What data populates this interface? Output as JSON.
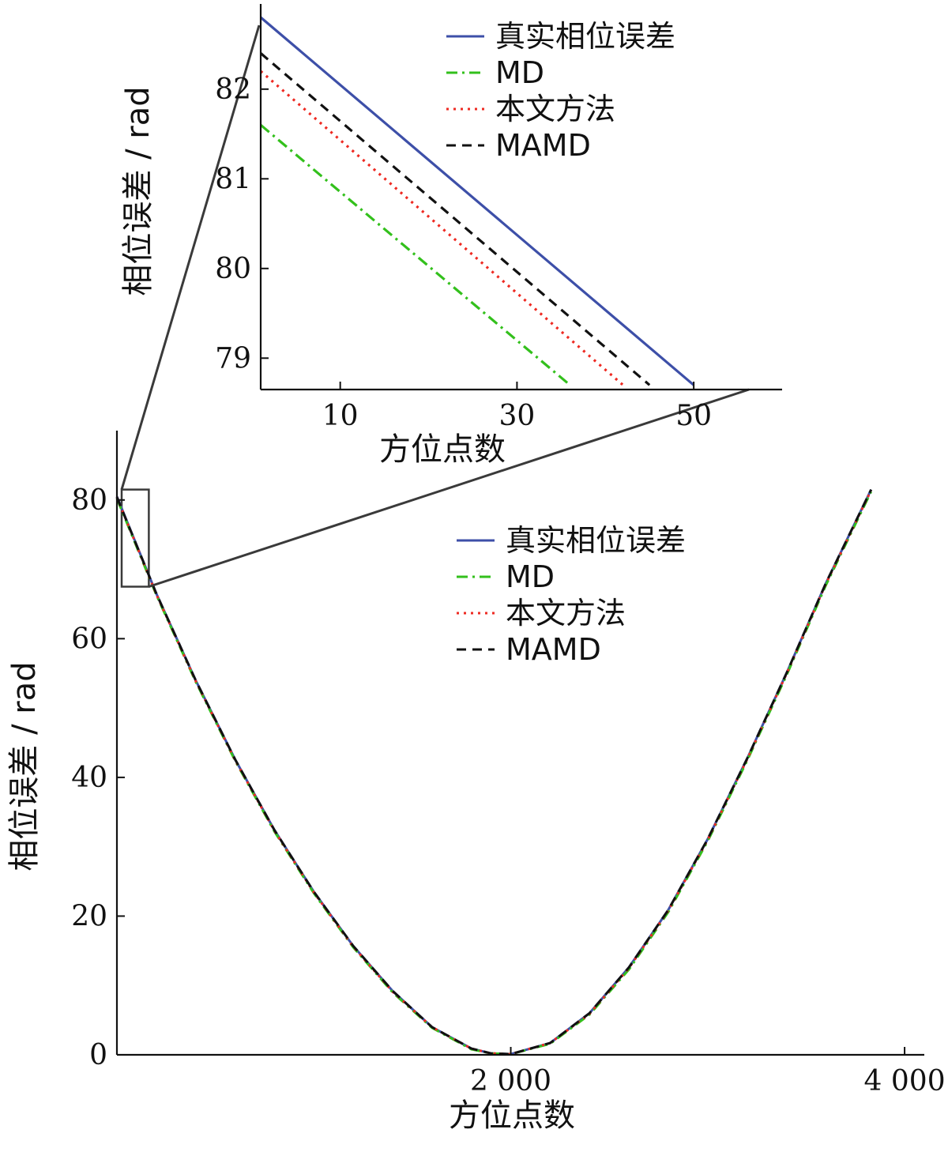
{
  "chart_data": [
    {
      "id": "main",
      "type": "line",
      "title": "",
      "xlabel": "方位点数",
      "ylabel": "相位误差 / rad",
      "xlim": [
        0,
        4100
      ],
      "ylim": [
        0,
        90
      ],
      "xticks": [
        2000,
        4000
      ],
      "xtick_labels": [
        "2 000",
        "4 000"
      ],
      "yticks": [
        0,
        20,
        40,
        60,
        80
      ],
      "ytick_labels": [
        "0",
        "20",
        "40",
        "60",
        "80"
      ],
      "grid": false,
      "legend_position": "upper-right",
      "series": [
        {
          "name": "真实相位误差",
          "color": "#3d4fa8",
          "dash": "solid",
          "x": [
            0,
            200,
            400,
            600,
            800,
            1000,
            1200,
            1400,
            1600,
            1800,
            1900,
            2000,
            2200,
            2400,
            2600,
            2800,
            3000,
            3200,
            3400,
            3600,
            3830
          ],
          "y": [
            80.5,
            66.5,
            54.0,
            42.6,
            32.4,
            23.5,
            15.7,
            9.2,
            4.0,
            0.9,
            0.2,
            0.1,
            1.7,
            6.0,
            12.6,
            20.9,
            31.1,
            42.7,
            55.0,
            68.0,
            81.5
          ]
        },
        {
          "name": "MD",
          "color": "#33c01c",
          "dash": "dashdot",
          "x": [
            0,
            200,
            400,
            600,
            800,
            1000,
            1200,
            1400,
            1600,
            1800,
            1900,
            2000,
            2200,
            2400,
            2600,
            2800,
            3000,
            3200,
            3400,
            3600,
            3830
          ],
          "y": [
            80.2,
            66.3,
            53.8,
            42.4,
            32.2,
            23.3,
            15.5,
            9.0,
            3.9,
            0.8,
            0.2,
            0.1,
            1.6,
            5.8,
            12.3,
            20.6,
            30.8,
            42.4,
            54.7,
            67.7,
            81.2
          ]
        },
        {
          "name": "本文方法",
          "color": "#ee2a22",
          "dash": "dotted",
          "x": [
            0,
            200,
            400,
            600,
            800,
            1000,
            1200,
            1400,
            1600,
            1800,
            1900,
            2000,
            2200,
            2400,
            2600,
            2800,
            3000,
            3200,
            3400,
            3600,
            3830
          ],
          "y": [
            80.4,
            66.4,
            53.9,
            42.5,
            32.3,
            23.4,
            15.6,
            9.1,
            4.0,
            0.9,
            0.2,
            0.1,
            1.7,
            5.9,
            12.5,
            20.8,
            31.0,
            42.6,
            54.9,
            67.9,
            81.4
          ]
        },
        {
          "name": "MAMD",
          "color": "#111111",
          "dash": "dashed",
          "x": [
            0,
            200,
            400,
            600,
            800,
            1000,
            1200,
            1400,
            1600,
            1800,
            1900,
            2000,
            2200,
            2400,
            2600,
            2800,
            3000,
            3200,
            3400,
            3600,
            3830
          ],
          "y": [
            80.4,
            66.5,
            54.0,
            42.6,
            32.4,
            23.5,
            15.7,
            9.2,
            4.0,
            0.9,
            0.2,
            0.1,
            1.7,
            6.0,
            12.6,
            20.9,
            31.1,
            42.7,
            55.0,
            68.0,
            81.5
          ]
        }
      ]
    },
    {
      "id": "inset",
      "type": "line",
      "title": "",
      "xlabel": "方位点数",
      "ylabel": "相位误差 / rad",
      "xlim": [
        1,
        60
      ],
      "ylim": [
        78.65,
        82.95
      ],
      "xticks": [
        10,
        30,
        50
      ],
      "xtick_labels": [
        "10",
        "30",
        "50"
      ],
      "yticks": [
        79,
        80,
        81,
        82
      ],
      "ytick_labels": [
        "79",
        "80",
        "81",
        "82"
      ],
      "grid": false,
      "legend_position": "upper-right",
      "series": [
        {
          "name": "真实相位误差",
          "color": "#3d4fa8",
          "dash": "solid",
          "x": [
            1,
            50
          ],
          "y": [
            82.8,
            78.7
          ]
        },
        {
          "name": "MD",
          "color": "#33c01c",
          "dash": "dashdot",
          "x": [
            1,
            36
          ],
          "y": [
            81.6,
            78.7
          ]
        },
        {
          "name": "本文方法",
          "color": "#ee2a22",
          "dash": "dotted",
          "x": [
            1,
            42
          ],
          "y": [
            82.2,
            78.7
          ]
        },
        {
          "name": "MAMD",
          "color": "#111111",
          "dash": "dashed",
          "x": [
            1,
            45
          ],
          "y": [
            82.4,
            78.7
          ]
        }
      ]
    }
  ],
  "zoom": {
    "region_x": [
      0,
      150
    ],
    "region_y": [
      67.5,
      81.5
    ]
  }
}
